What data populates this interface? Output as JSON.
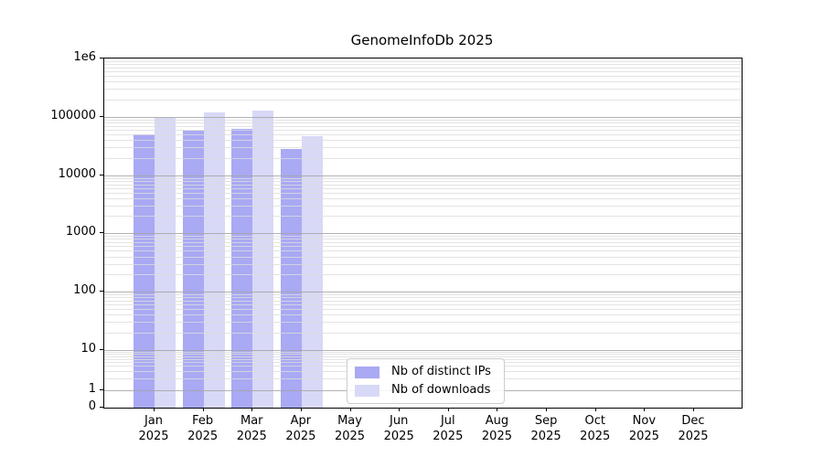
{
  "chart_data": {
    "type": "bar",
    "title": "GenomeInfoDb 2025",
    "categories": [
      "Jan 2025",
      "Feb 2025",
      "Mar 2025",
      "Apr 2025",
      "May 2025",
      "Jun 2025",
      "Jul 2025",
      "Aug 2025",
      "Sep 2025",
      "Oct 2025",
      "Nov 2025",
      "Dec 2025"
    ],
    "series": [
      {
        "name": "Nb of distinct IPs",
        "color": "#a9a9f4",
        "values": [
          50000,
          59000,
          62000,
          28000,
          null,
          null,
          null,
          null,
          null,
          null,
          null,
          null
        ]
      },
      {
        "name": "Nb of downloads",
        "color": "#d8d8f7",
        "values": [
          98000,
          118000,
          130000,
          47000,
          null,
          null,
          null,
          null,
          null,
          null,
          null,
          null
        ]
      }
    ],
    "xlabel": "",
    "ylabel": "",
    "yscale": "symlog",
    "ylim": [
      0,
      1000000
    ],
    "yticks": [
      {
        "label": "1e6",
        "value": 1000000
      },
      {
        "label": "100000",
        "value": 100000
      },
      {
        "label": "10000",
        "value": 10000
      },
      {
        "label": "1000",
        "value": 1000
      },
      {
        "label": "100",
        "value": 100
      },
      {
        "label": "10",
        "value": 10
      },
      {
        "label": "1",
        "value": 1
      },
      {
        "label": "0",
        "value": 0
      }
    ],
    "grid": true,
    "legend_position": "lower center"
  }
}
